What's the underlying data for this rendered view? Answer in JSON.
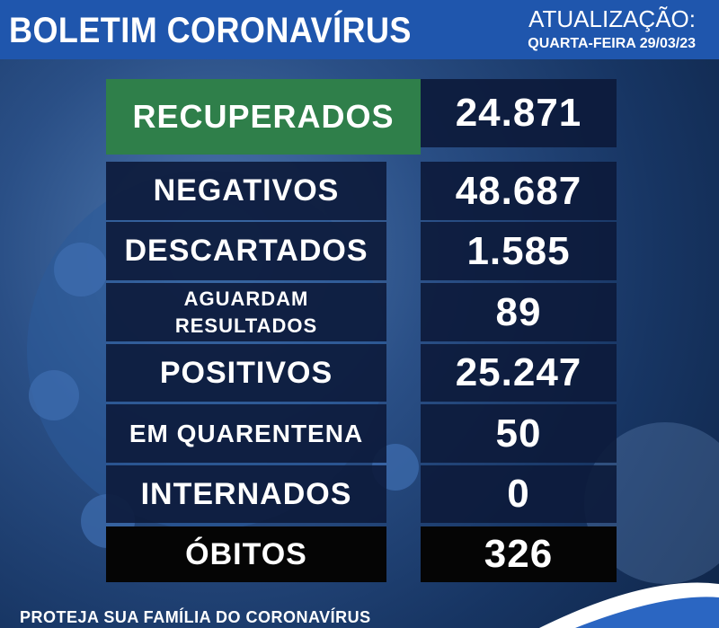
{
  "header": {
    "title": "BOLETIM CORONAVÍRUS",
    "update_label": "ATUALIZAÇÃO:",
    "date": "QUARTA-FEIRA 29/03/23"
  },
  "table": {
    "rows": [
      [
        "RECUPERADOS",
        "24.871"
      ],
      [
        "NEGATIVOS",
        "48.687"
      ],
      [
        "DESCARTADOS",
        "1.585"
      ],
      [
        "AGUARDAM RESULTADOS",
        "89"
      ],
      [
        "POSITIVOS",
        "25.247"
      ],
      [
        "EM QUARENTENA",
        "50"
      ],
      [
        "INTERNADOS",
        "0"
      ],
      [
        "ÓBITOS",
        "326"
      ]
    ]
  },
  "footer": {
    "text": "PROTEJA SUA FAMÍLIA DO CORONAVÍRUS"
  }
}
